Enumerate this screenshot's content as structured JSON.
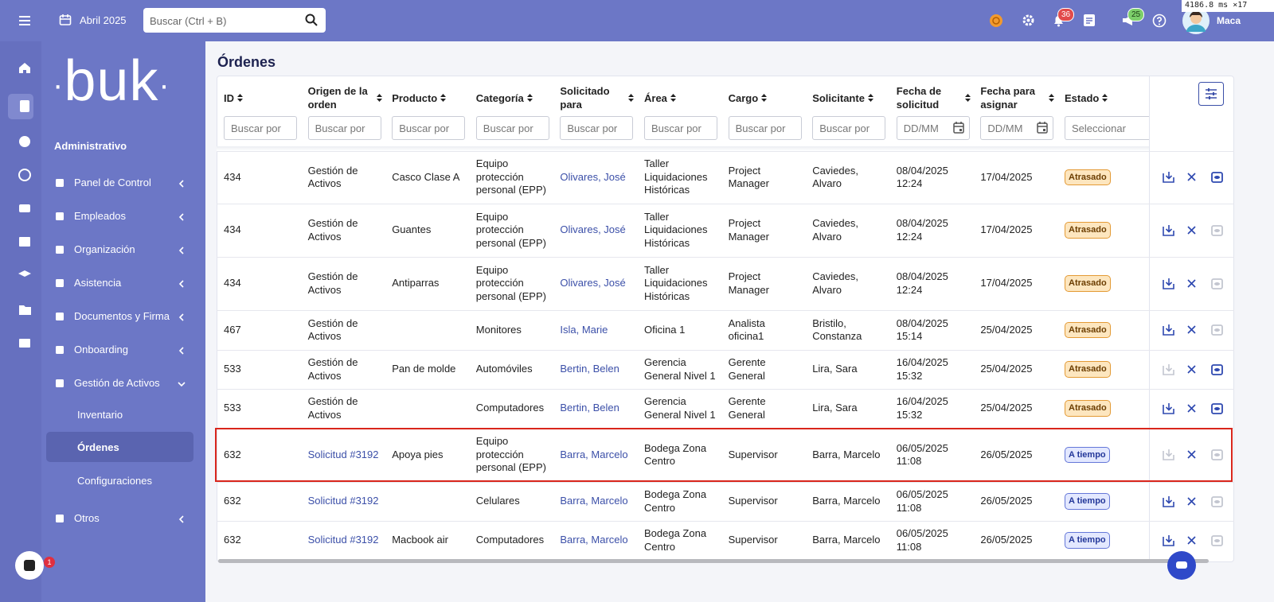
{
  "topbar": {
    "period": "Abril 2025",
    "search_placeholder": "Buscar (Ctrl + B)",
    "notifications": "36",
    "messages": "25",
    "user": "Maca",
    "perf": "4186.8 ms ×17"
  },
  "sidebar": {
    "logo": "buk",
    "section": "Administrativo",
    "menu": [
      "Panel de Control",
      "Empleados",
      "Organización",
      "Asistencia",
      "Documentos y Firma",
      "Onboarding",
      "Gestión de Activos"
    ],
    "submenu": [
      "Inventario",
      "Órdenes",
      "Configuraciones"
    ],
    "other": "Otros",
    "chat_badge": "1"
  },
  "page": {
    "title": "Órdenes"
  },
  "table": {
    "headers": [
      "ID",
      "Origen de la orden",
      "Producto",
      "Categoría",
      "Solicitado para",
      "Área",
      "Cargo",
      "Solicitante",
      "Fecha de solicitud",
      "Fecha para asignar",
      "Estado"
    ],
    "filters": [
      "Buscar por",
      "Buscar por",
      "Buscar por",
      "Buscar por",
      "Buscar por",
      "Buscar por",
      "Buscar por",
      "Buscar por",
      "DD/MM",
      "DD/MM",
      "Seleccionar"
    ],
    "rows": [
      [
        "434",
        "Gestión de Activos",
        "Casco Clase A",
        "Equipo protección personal (EPP)",
        "Olivares, José",
        "Taller Liquidaciones Históricas",
        "Project Manager",
        "Caviedes, Alvaro",
        "08/04/2025 12:24",
        "17/04/2025",
        "Atrasado"
      ],
      [
        "434",
        "Gestión de Activos",
        "Guantes",
        "Equipo protección personal (EPP)",
        "Olivares, José",
        "Taller Liquidaciones Históricas",
        "Project Manager",
        "Caviedes, Alvaro",
        "08/04/2025 12:24",
        "17/04/2025",
        "Atrasado"
      ],
      [
        "434",
        "Gestión de Activos",
        "Antiparras",
        "Equipo protección personal (EPP)",
        "Olivares, José",
        "Taller Liquidaciones Históricas",
        "Project Manager",
        "Caviedes, Alvaro",
        "08/04/2025 12:24",
        "17/04/2025",
        "Atrasado"
      ],
      [
        "467",
        "Gestión de Activos",
        null,
        "Monitores",
        "Isla, Marie",
        "Oficina 1",
        "Analista oficina1",
        "Bristilo, Constanza",
        "08/04/2025 15:14",
        "25/04/2025",
        "Atrasado"
      ],
      [
        "533",
        "Gestión de Activos",
        "Pan de molde",
        "Automóviles",
        "Bertin, Belen",
        "Gerencia General Nivel 1",
        "Gerente General",
        "Lira, Sara",
        "16/04/2025 15:32",
        "25/04/2025",
        "Atrasado"
      ],
      [
        "533",
        "Gestión de Activos",
        null,
        "Computadores",
        "Bertin, Belen",
        "Gerencia General Nivel 1",
        "Gerente General",
        "Lira, Sara",
        "16/04/2025 15:32",
        "25/04/2025",
        "Atrasado"
      ],
      [
        "632",
        "Solicitud #3192",
        "Apoya pies",
        "Equipo protección personal (EPP)",
        "Barra, Marcelo",
        "Bodega Zona Centro",
        "Supervisor",
        "Barra, Marcelo",
        "06/05/2025 11:08",
        "26/05/2025",
        "A tiempo"
      ],
      [
        "632",
        "Solicitud #3192",
        null,
        "Celulares",
        "Barra, Marcelo",
        "Bodega Zona Centro",
        "Supervisor",
        "Barra, Marcelo",
        "06/05/2025 11:08",
        "26/05/2025",
        "A tiempo"
      ],
      [
        "632",
        "Solicitud #3192",
        "Macbook air",
        "Computadores",
        "Barra, Marcelo",
        "Bodega Zona Centro",
        "Supervisor",
        "Barra, Marcelo",
        "06/05/2025 11:08",
        "26/05/2025",
        "A tiempo"
      ]
    ]
  }
}
